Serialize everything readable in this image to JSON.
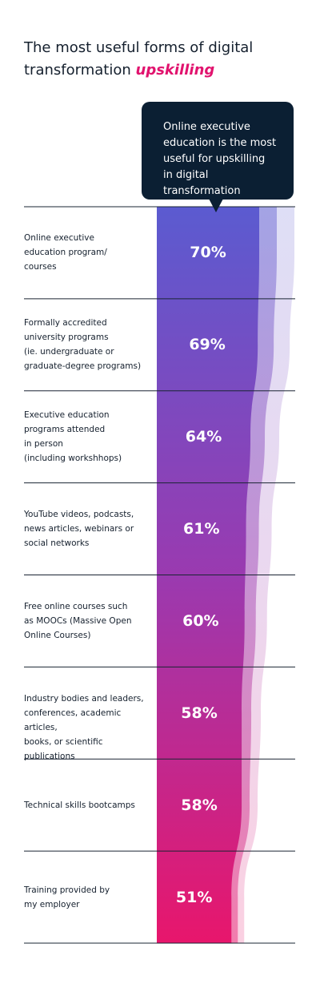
{
  "title": {
    "text": "The most useful forms of digital transformation",
    "accent": "upskilling"
  },
  "callout": {
    "text": "Online executive education is the most useful for upskilling in digital transformation"
  },
  "colors": {
    "title_text": "#15202e",
    "accent": "#e1136e",
    "callout_bg": "#0b1f33",
    "bar_top": "#5b5bd0",
    "bar_bottom": "#e8166c",
    "divider": "#1a2433"
  },
  "chart_data": {
    "type": "bar",
    "orientation": "horizontal",
    "categories": [
      "Online executive education program/ courses",
      "Formally accredited university programs (ie. undergraduate or graduate-degree programs)",
      "Executive education programs attended in person (including workshhops)",
      "YouTube videos, podcasts, news articles, webinars or social networks",
      "Free online courses such as MOOCs (Massive Open Online Courses)",
      "Industry bodies and leaders, conferences, academic articles, books, or scientific publications",
      "Technical skills bootcamps",
      "Training provided by my employer"
    ],
    "category_lines": [
      [
        "Online executive",
        "education program/",
        "courses"
      ],
      [
        "Formally accredited",
        "university programs",
        "(ie. undergraduate or",
        "graduate-degree programs)"
      ],
      [
        "Executive education",
        "programs attended",
        "in person",
        "(including workshhops)"
      ],
      [
        "YouTube videos, podcasts,",
        "news articles, webinars or",
        "social networks"
      ],
      [
        "Free online courses such",
        "as MOOCs (Massive Open",
        "Online Courses)"
      ],
      [
        "Industry bodies and leaders,",
        "conferences, academic articles,",
        "books, or scientific publications"
      ],
      [
        "Technical skills bootcamps"
      ],
      [
        "Training provided by",
        "my employer"
      ]
    ],
    "values": [
      70,
      69,
      64,
      61,
      60,
      58,
      58,
      51
    ],
    "value_labels": [
      "70%",
      "69%",
      "64%",
      "61%",
      "60%",
      "58%",
      "58%",
      "51%"
    ]
  }
}
